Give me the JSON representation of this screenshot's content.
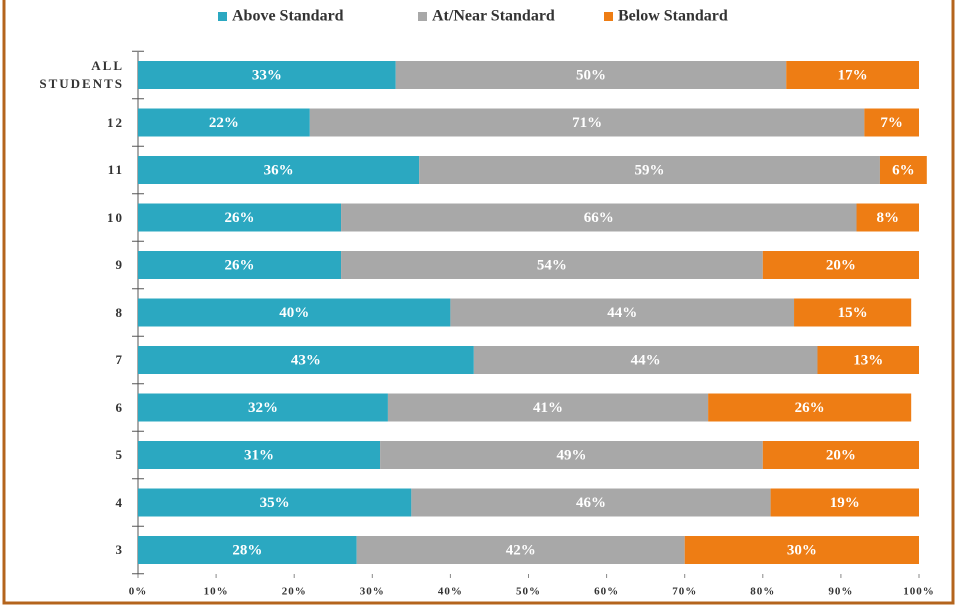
{
  "chart_data": {
    "type": "stacked_barh",
    "categories": [
      "ALL STUDENTS",
      "12",
      "11",
      "10",
      "9",
      "8",
      "7",
      "6",
      "5",
      "4",
      "3"
    ],
    "series": [
      {
        "name": "Above Standard",
        "color": "#2ba8c1",
        "values": [
          33,
          22,
          36,
          26,
          26,
          40,
          43,
          32,
          31,
          35,
          28
        ],
        "value_labels": [
          "33%",
          "22%",
          "36%",
          "26%",
          "26%",
          "40%",
          "43%",
          "32%",
          "31%",
          "35%",
          "28%"
        ]
      },
      {
        "name": "At/Near Standard",
        "color": "#a8a8a8",
        "values": [
          50,
          71,
          59,
          66,
          54,
          44,
          44,
          41,
          49,
          46,
          42
        ],
        "value_labels": [
          "50%",
          "71%",
          "59%",
          "66%",
          "54%",
          "44%",
          "44%",
          "41%",
          "49%",
          "46%",
          "42%"
        ]
      },
      {
        "name": "Below Standard",
        "color": "#ee7d14",
        "values": [
          17,
          7,
          6,
          8,
          20,
          15,
          13,
          26,
          20,
          19,
          30
        ],
        "value_labels": [
          "17%",
          "7%",
          "6%",
          "8%",
          "20%",
          "15%",
          "13%",
          "26%",
          "20%",
          "19%",
          "30%"
        ]
      }
    ],
    "xlim": [
      0,
      100
    ],
    "xticks": [
      {
        "value": 0,
        "label": "0%"
      },
      {
        "value": 10,
        "label": "10%"
      },
      {
        "value": 20,
        "label": "20%"
      },
      {
        "value": 30,
        "label": "30%"
      },
      {
        "value": 40,
        "label": "40%"
      },
      {
        "value": 50,
        "label": "50%"
      },
      {
        "value": 60,
        "label": "60%"
      },
      {
        "value": 70,
        "label": "70%"
      },
      {
        "value": 80,
        "label": "80%"
      },
      {
        "value": 90,
        "label": "90%"
      },
      {
        "value": 100,
        "label": "100%"
      }
    ],
    "legend": "top"
  }
}
